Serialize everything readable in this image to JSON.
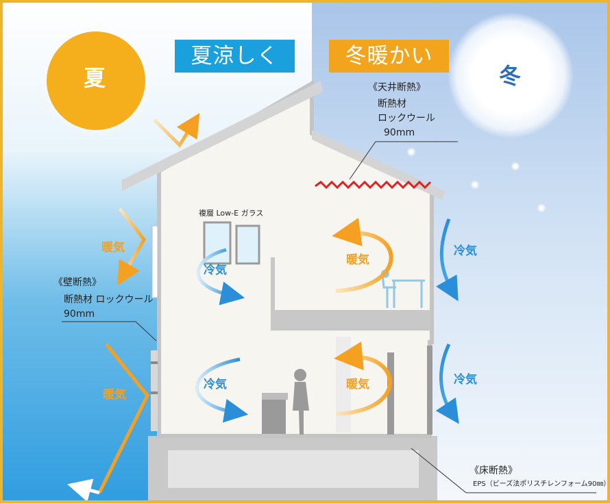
{
  "header": {
    "summer_badge": "夏涼しく",
    "winter_badge": "冬暖かい"
  },
  "seasons": {
    "summer": "夏",
    "winter": "冬"
  },
  "air": {
    "warm": "暖気",
    "cool": "冷気"
  },
  "callouts": {
    "ceiling": {
      "title": "《天井断熱》",
      "line1": "断熱材",
      "line2": "ロックウール",
      "line3": "90mm"
    },
    "wall": {
      "title": "《壁断熱》",
      "line1": "断熱材 ロックウール",
      "line2": "90mm"
    },
    "floor": {
      "title": "《床断熱》",
      "line1": "EPS（ビーズ法ポリスチレンフォーム90㎜）"
    },
    "glass": "複層 Low-E ガラス"
  },
  "colors": {
    "summer_sun": "#f5ae1c",
    "badge_blue": "#1aa0dc",
    "badge_orange": "#f2a41c",
    "frame": "#f0b428",
    "warm_arrow": "#f5a020",
    "cool_arrow": "#2a8ed8",
    "insulation_red": "#e02020"
  }
}
